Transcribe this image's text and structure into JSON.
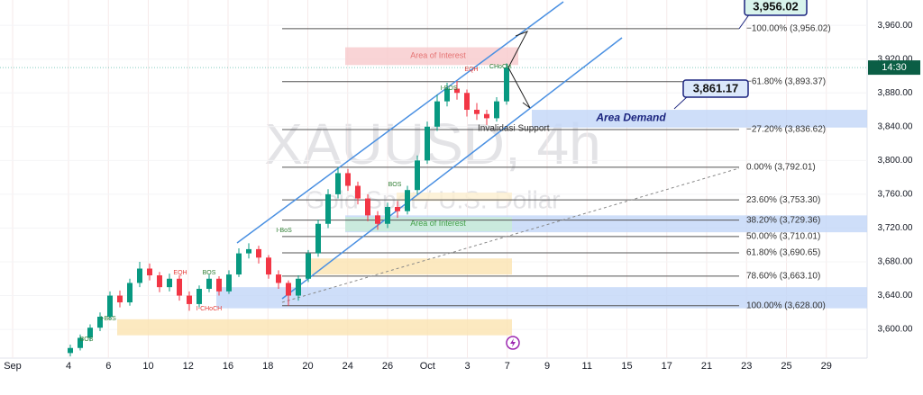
{
  "chart_data": {
    "type": "candlestick",
    "symbol": "XAUUSD, 4h",
    "description": "Gold Spot / U.S. Dollar",
    "categories": [
      "Sep",
      "4",
      "6",
      "10",
      "12",
      "16",
      "18",
      "20",
      "24",
      "26",
      "Oct",
      "3",
      "7",
      "9",
      "11",
      "15",
      "17",
      "21",
      "23",
      "25",
      "29"
    ],
    "open": [
      3572,
      3578,
      3590,
      3602,
      3615,
      3640,
      3632,
      3655,
      3672,
      3664,
      3650,
      3660,
      3640,
      3630,
      3648,
      3660,
      3645,
      3665,
      3690,
      3695,
      3685,
      3665,
      3655,
      3640,
      3660,
      3690,
      3725,
      3760,
      3785,
      3770,
      3755,
      3735,
      3725,
      3745,
      3740,
      3765,
      3800,
      3840,
      3870,
      3885,
      3880,
      3860,
      3855,
      3850,
      3870
    ],
    "high": [
      3582,
      3594,
      3606,
      3620,
      3645,
      3646,
      3660,
      3680,
      3678,
      3668,
      3666,
      3664,
      3645,
      3652,
      3665,
      3663,
      3670,
      3696,
      3702,
      3699,
      3688,
      3670,
      3658,
      3664,
      3694,
      3730,
      3766,
      3792,
      3790,
      3775,
      3760,
      3740,
      3750,
      3752,
      3770,
      3806,
      3846,
      3878,
      3892,
      3894,
      3884,
      3868,
      3860,
      3875,
      3915
    ],
    "low": [
      3568,
      3575,
      3586,
      3598,
      3612,
      3626,
      3628,
      3650,
      3658,
      3644,
      3645,
      3634,
      3622,
      3626,
      3644,
      3640,
      3642,
      3662,
      3684,
      3678,
      3660,
      3648,
      3628,
      3634,
      3656,
      3686,
      3720,
      3755,
      3764,
      3748,
      3728,
      3718,
      3720,
      3732,
      3736,
      3760,
      3796,
      3835,
      3864,
      3872,
      3852,
      3848,
      3842,
      3846,
      3866
    ],
    "close": [
      3578,
      3590,
      3602,
      3615,
      3640,
      3632,
      3655,
      3672,
      3664,
      3650,
      3660,
      3640,
      3630,
      3648,
      3660,
      3645,
      3665,
      3690,
      3695,
      3685,
      3665,
      3655,
      3640,
      3660,
      3690,
      3725,
      3760,
      3785,
      3770,
      3755,
      3735,
      3725,
      3745,
      3740,
      3765,
      3800,
      3840,
      3870,
      3885,
      3880,
      3860,
      3855,
      3850,
      3870,
      3910
    ],
    "up_color": "#089981",
    "down_color": "#f23645",
    "ylim": [
      3566,
      3990
    ],
    "yticks": [
      {
        "value": 3600,
        "label": "3,600.00"
      },
      {
        "value": 3640,
        "label": "3,640.00"
      },
      {
        "value": 3680,
        "label": "3,680.00"
      },
      {
        "value": 3720,
        "label": "3,720.00"
      },
      {
        "value": 3760,
        "label": "3,760.00"
      },
      {
        "value": 3800,
        "label": "3,800.00"
      },
      {
        "value": 3840,
        "label": "3,840.00"
      },
      {
        "value": 3880,
        "label": "3,880.00"
      },
      {
        "value": 3920,
        "label": "3,920.00"
      },
      {
        "value": 3960,
        "label": "3,960.00"
      }
    ],
    "countdown": "14:30",
    "fib_levels": [
      {
        "value": 3956.02,
        "label": "−100.00% (3,956.02)"
      },
      {
        "value": 3893.37,
        "label": "−61.80% (3,893.37)"
      },
      {
        "value": 3836.62,
        "label": "−27.20% (3,836.62)"
      },
      {
        "value": 3792.01,
        "label": "0.00% (3,792.01)"
      },
      {
        "value": 3753.3,
        "label": "23.60% (3,753.30)"
      },
      {
        "value": 3729.36,
        "label": "38.20% (3,729.36)"
      },
      {
        "value": 3710.01,
        "label": "50.00% (3,710.01)"
      },
      {
        "value": 3690.65,
        "label": "61.80% (3,690.65)"
      },
      {
        "value": 3663.1,
        "label": "78.60% (3,663.10)"
      },
      {
        "value": 3628.0,
        "label": "100.00% (3,628.00)"
      }
    ],
    "zones": [
      {
        "name": "Area of Interest",
        "range": [
          3913,
          3934
        ],
        "color": "#f8c9cc"
      },
      {
        "name": "Area Demand",
        "range": [
          3839,
          3860
        ],
        "color": "#c2d6f7"
      },
      {
        "range": [
          3715,
          3735
        ],
        "color": "#c2d6f7"
      },
      {
        "range": [
          3625,
          3650
        ],
        "color": "#c2d6f7"
      },
      {
        "name": "Area of Interest",
        "range": [
          3716,
          3733
        ],
        "color": "#c9ecd6"
      },
      {
        "range": [
          3665,
          3684
        ],
        "color": "#fbe3b0"
      },
      {
        "range": [
          3593,
          3612
        ],
        "color": "#fbe3b0"
      },
      {
        "range": [
          3752,
          3762
        ],
        "color": "#fcefcf"
      }
    ],
    "callouts": [
      {
        "value": 3956.02,
        "label": "3,956.02"
      },
      {
        "value": 3861.17,
        "label": "3,861.17"
      }
    ],
    "annotations": [
      "Invalidasi Support"
    ],
    "markers": [
      "BOS",
      "I-BoS",
      "EQH",
      "I-CHoCH",
      "BOS",
      "I-BoS",
      "BOS",
      "EQH",
      "CHoCH",
      "I-BOS"
    ]
  }
}
